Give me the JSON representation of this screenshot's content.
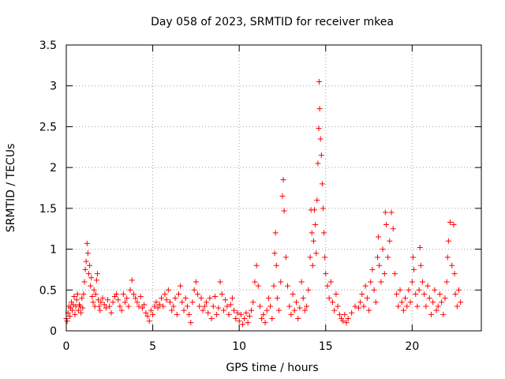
{
  "chart_data": {
    "type": "scatter",
    "title": "Day 058 of 2023, SRMTID for receiver mkea",
    "xlabel": "GPS time / hours",
    "ylabel": "SRMTID / TECUs",
    "xlim": [
      0,
      24
    ],
    "ylim": [
      0,
      3.5
    ],
    "x_ticks": [
      0,
      5,
      10,
      15,
      20
    ],
    "x_tick_labels": [
      "0",
      "5",
      "10",
      "15",
      "20"
    ],
    "y_ticks": [
      0,
      0.5,
      1,
      1.5,
      2,
      2.5,
      3,
      3.5
    ],
    "y_tick_labels": [
      "0",
      "0.5",
      "1",
      "1.5",
      "2",
      "2.5",
      "3",
      "3.5"
    ],
    "grid": true,
    "marker": "plus",
    "series": [
      {
        "name": "SRMTID",
        "color": "#ff0000",
        "points": [
          [
            0.0,
            0.15
          ],
          [
            0.05,
            0.12
          ],
          [
            0.1,
            0.22
          ],
          [
            0.15,
            0.3
          ],
          [
            0.2,
            0.18
          ],
          [
            0.25,
            0.28
          ],
          [
            0.3,
            0.35
          ],
          [
            0.35,
            0.25
          ],
          [
            0.4,
            0.32
          ],
          [
            0.45,
            0.42
          ],
          [
            0.5,
            0.2
          ],
          [
            0.55,
            0.3
          ],
          [
            0.6,
            0.38
          ],
          [
            0.65,
            0.45
          ],
          [
            0.7,
            0.25
          ],
          [
            0.75,
            0.32
          ],
          [
            0.8,
            0.3
          ],
          [
            0.85,
            0.22
          ],
          [
            0.9,
            0.4
          ],
          [
            0.95,
            0.28
          ],
          [
            1.0,
            0.45
          ],
          [
            1.05,
            0.6
          ],
          [
            1.1,
            0.75
          ],
          [
            1.15,
            0.85
          ],
          [
            1.2,
            1.07
          ],
          [
            1.25,
            0.95
          ],
          [
            1.3,
            0.7
          ],
          [
            1.35,
            0.8
          ],
          [
            1.4,
            0.55
          ],
          [
            1.45,
            0.65
          ],
          [
            1.5,
            0.42
          ],
          [
            1.55,
            0.35
          ],
          [
            1.6,
            0.5
          ],
          [
            1.65,
            0.3
          ],
          [
            1.7,
            0.45
          ],
          [
            1.75,
            0.62
          ],
          [
            1.8,
            0.7
          ],
          [
            1.85,
            0.38
          ],
          [
            1.9,
            0.3
          ],
          [
            1.95,
            0.25
          ],
          [
            2.0,
            0.35
          ],
          [
            2.1,
            0.4
          ],
          [
            2.2,
            0.32
          ],
          [
            2.3,
            0.28
          ],
          [
            2.4,
            0.38
          ],
          [
            2.5,
            0.3
          ],
          [
            2.6,
            0.22
          ],
          [
            2.7,
            0.35
          ],
          [
            2.8,
            0.42
          ],
          [
            2.9,
            0.45
          ],
          [
            3.0,
            0.38
          ],
          [
            3.1,
            0.3
          ],
          [
            3.2,
            0.25
          ],
          [
            3.3,
            0.45
          ],
          [
            3.4,
            0.35
          ],
          [
            3.5,
            0.4
          ],
          [
            3.6,
            0.3
          ],
          [
            3.7,
            0.5
          ],
          [
            3.8,
            0.62
          ],
          [
            3.9,
            0.45
          ],
          [
            4.0,
            0.4
          ],
          [
            4.1,
            0.35
          ],
          [
            4.2,
            0.3
          ],
          [
            4.3,
            0.42
          ],
          [
            4.4,
            0.28
          ],
          [
            4.5,
            0.32
          ],
          [
            4.6,
            0.22
          ],
          [
            4.7,
            0.18
          ],
          [
            4.8,
            0.12
          ],
          [
            4.9,
            0.25
          ],
          [
            5.0,
            0.2
          ],
          [
            5.1,
            0.3
          ],
          [
            5.2,
            0.35
          ],
          [
            5.3,
            0.28
          ],
          [
            5.4,
            0.32
          ],
          [
            5.5,
            0.4
          ],
          [
            5.6,
            0.3
          ],
          [
            5.7,
            0.45
          ],
          [
            5.8,
            0.38
          ],
          [
            5.9,
            0.5
          ],
          [
            6.0,
            0.35
          ],
          [
            6.1,
            0.25
          ],
          [
            6.2,
            0.3
          ],
          [
            6.3,
            0.4
          ],
          [
            6.4,
            0.2
          ],
          [
            6.5,
            0.45
          ],
          [
            6.6,
            0.55
          ],
          [
            6.7,
            0.35
          ],
          [
            6.8,
            0.25
          ],
          [
            6.9,
            0.4
          ],
          [
            7.0,
            0.3
          ],
          [
            7.1,
            0.2
          ],
          [
            7.2,
            0.1
          ],
          [
            7.3,
            0.35
          ],
          [
            7.4,
            0.5
          ],
          [
            7.5,
            0.6
          ],
          [
            7.6,
            0.45
          ],
          [
            7.7,
            0.3
          ],
          [
            7.8,
            0.4
          ],
          [
            7.9,
            0.25
          ],
          [
            8.0,
            0.3
          ],
          [
            8.1,
            0.35
          ],
          [
            8.2,
            0.22
          ],
          [
            8.3,
            0.4
          ],
          [
            8.4,
            0.15
          ],
          [
            8.5,
            0.3
          ],
          [
            8.6,
            0.42
          ],
          [
            8.7,
            0.2
          ],
          [
            8.8,
            0.28
          ],
          [
            8.9,
            0.6
          ],
          [
            9.0,
            0.45
          ],
          [
            9.1,
            0.25
          ],
          [
            9.2,
            0.38
          ],
          [
            9.3,
            0.3
          ],
          [
            9.4,
            0.2
          ],
          [
            9.5,
            0.32
          ],
          [
            9.6,
            0.4
          ],
          [
            9.7,
            0.25
          ],
          [
            9.8,
            0.15
          ],
          [
            9.9,
            0.22
          ],
          [
            10.0,
            0.12
          ],
          [
            10.1,
            0.2
          ],
          [
            10.2,
            0.08
          ],
          [
            10.3,
            0.15
          ],
          [
            10.4,
            0.22
          ],
          [
            10.5,
            0.1
          ],
          [
            10.6,
            0.18
          ],
          [
            10.7,
            0.25
          ],
          [
            10.8,
            0.35
          ],
          [
            10.9,
            0.6
          ],
          [
            11.0,
            0.8
          ],
          [
            11.1,
            0.55
          ],
          [
            11.2,
            0.3
          ],
          [
            11.3,
            0.15
          ],
          [
            11.4,
            0.2
          ],
          [
            11.5,
            0.1
          ],
          [
            11.6,
            0.25
          ],
          [
            11.7,
            0.4
          ],
          [
            11.8,
            0.3
          ],
          [
            11.9,
            0.15
          ],
          [
            12.0,
            0.55
          ],
          [
            12.05,
            0.95
          ],
          [
            12.1,
            1.2
          ],
          [
            12.15,
            0.8
          ],
          [
            12.2,
            0.4
          ],
          [
            12.3,
            0.25
          ],
          [
            12.4,
            0.6
          ],
          [
            12.5,
            1.65
          ],
          [
            12.55,
            1.85
          ],
          [
            12.6,
            1.47
          ],
          [
            12.7,
            0.9
          ],
          [
            12.8,
            0.55
          ],
          [
            12.9,
            0.3
          ],
          [
            13.0,
            0.2
          ],
          [
            13.1,
            0.45
          ],
          [
            13.2,
            0.25
          ],
          [
            13.3,
            0.35
          ],
          [
            13.4,
            0.15
          ],
          [
            13.5,
            0.28
          ],
          [
            13.6,
            0.6
          ],
          [
            13.7,
            0.4
          ],
          [
            13.8,
            0.25
          ],
          [
            13.9,
            0.3
          ],
          [
            14.0,
            0.5
          ],
          [
            14.1,
            0.9
          ],
          [
            14.15,
            1.48
          ],
          [
            14.2,
            1.2
          ],
          [
            14.25,
            0.8
          ],
          [
            14.3,
            1.1
          ],
          [
            14.35,
            1.48
          ],
          [
            14.4,
            1.3
          ],
          [
            14.45,
            0.95
          ],
          [
            14.5,
            1.6
          ],
          [
            14.55,
            2.05
          ],
          [
            14.6,
            2.48
          ],
          [
            14.62,
            3.05
          ],
          [
            14.65,
            2.72
          ],
          [
            14.7,
            2.35
          ],
          [
            14.75,
            2.15
          ],
          [
            14.8,
            1.8
          ],
          [
            14.85,
            1.5
          ],
          [
            14.9,
            1.2
          ],
          [
            14.95,
            0.9
          ],
          [
            15.0,
            0.7
          ],
          [
            15.1,
            0.55
          ],
          [
            15.2,
            0.4
          ],
          [
            15.3,
            0.6
          ],
          [
            15.4,
            0.35
          ],
          [
            15.5,
            0.25
          ],
          [
            15.6,
            0.45
          ],
          [
            15.7,
            0.3
          ],
          [
            15.8,
            0.2
          ],
          [
            15.9,
            0.15
          ],
          [
            16.0,
            0.12
          ],
          [
            16.1,
            0.2
          ],
          [
            16.2,
            0.1
          ],
          [
            16.3,
            0.15
          ],
          [
            16.5,
            0.22
          ],
          [
            16.7,
            0.3
          ],
          [
            16.9,
            0.28
          ],
          [
            17.0,
            0.35
          ],
          [
            17.1,
            0.45
          ],
          [
            17.2,
            0.3
          ],
          [
            17.3,
            0.55
          ],
          [
            17.4,
            0.4
          ],
          [
            17.5,
            0.25
          ],
          [
            17.6,
            0.6
          ],
          [
            17.7,
            0.75
          ],
          [
            17.8,
            0.5
          ],
          [
            17.9,
            0.35
          ],
          [
            18.0,
            0.9
          ],
          [
            18.05,
            1.15
          ],
          [
            18.1,
            0.8
          ],
          [
            18.2,
            0.6
          ],
          [
            18.3,
            1.0
          ],
          [
            18.4,
            0.7
          ],
          [
            18.45,
            1.45
          ],
          [
            18.5,
            1.3
          ],
          [
            18.6,
            0.9
          ],
          [
            18.7,
            1.1
          ],
          [
            18.8,
            1.45
          ],
          [
            18.9,
            1.25
          ],
          [
            19.0,
            0.7
          ],
          [
            19.1,
            0.45
          ],
          [
            19.2,
            0.3
          ],
          [
            19.3,
            0.5
          ],
          [
            19.4,
            0.35
          ],
          [
            19.5,
            0.25
          ],
          [
            19.6,
            0.4
          ],
          [
            19.7,
            0.3
          ],
          [
            19.8,
            0.5
          ],
          [
            19.9,
            0.35
          ],
          [
            20.0,
            0.6
          ],
          [
            20.05,
            0.9
          ],
          [
            20.1,
            0.75
          ],
          [
            20.2,
            0.45
          ],
          [
            20.3,
            0.3
          ],
          [
            20.4,
            0.5
          ],
          [
            20.45,
            1.02
          ],
          [
            20.5,
            0.8
          ],
          [
            20.6,
            0.6
          ],
          [
            20.7,
            0.45
          ],
          [
            20.8,
            0.3
          ],
          [
            20.9,
            0.55
          ],
          [
            21.0,
            0.4
          ],
          [
            21.1,
            0.2
          ],
          [
            21.2,
            0.35
          ],
          [
            21.3,
            0.5
          ],
          [
            21.4,
            0.25
          ],
          [
            21.5,
            0.3
          ],
          [
            21.6,
            0.45
          ],
          [
            21.7,
            0.35
          ],
          [
            21.8,
            0.2
          ],
          [
            21.9,
            0.4
          ],
          [
            22.0,
            0.6
          ],
          [
            22.05,
            0.9
          ],
          [
            22.1,
            1.1
          ],
          [
            22.2,
            1.33
          ],
          [
            22.3,
            0.8
          ],
          [
            22.4,
            1.3
          ],
          [
            22.45,
            0.7
          ],
          [
            22.5,
            0.45
          ],
          [
            22.6,
            0.3
          ],
          [
            22.7,
            0.5
          ],
          [
            22.8,
            0.35
          ]
        ]
      }
    ]
  }
}
